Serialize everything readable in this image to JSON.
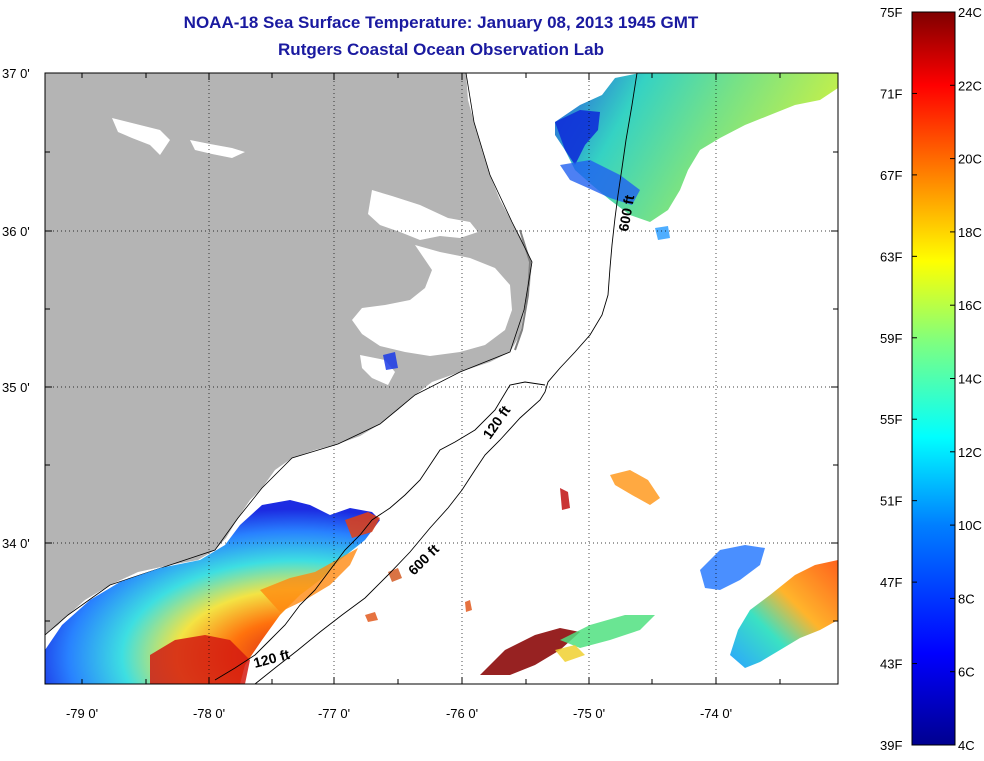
{
  "title": "NOAA-18 Sea Surface Temperature:  January 08, 2013 1945 GMT",
  "subtitle": "Rutgers Coastal Ocean Observation Lab",
  "axes": {
    "lat_labels": [
      "37 0'",
      "36 0'",
      "35 0'",
      "34 0'"
    ],
    "lon_labels": [
      "-79 0'",
      "-78 0'",
      "-77 0'",
      "-76 0'",
      "-75 0'",
      "-74 0'"
    ]
  },
  "isobaths": {
    "label_120": "120 ft",
    "label_600": "600 ft"
  },
  "colorbar": {
    "fahrenheit": [
      "75F",
      "71F",
      "67F",
      "63F",
      "59F",
      "55F",
      "51F",
      "47F",
      "43F",
      "39F"
    ],
    "celsius": [
      "24C",
      "22C",
      "20C",
      "18C",
      "16C",
      "14C",
      "12C",
      "10C",
      "8C",
      "6C",
      "4C"
    ],
    "colormap": [
      "#00008f",
      "#0000ff",
      "#007fff",
      "#00ffff",
      "#7fff7f",
      "#ffff00",
      "#ff7f00",
      "#ff0000",
      "#7f0000"
    ]
  },
  "colors": {
    "title": "#1a1aa0",
    "land": "#b4b4b4",
    "ocean": "#ffffff"
  }
}
